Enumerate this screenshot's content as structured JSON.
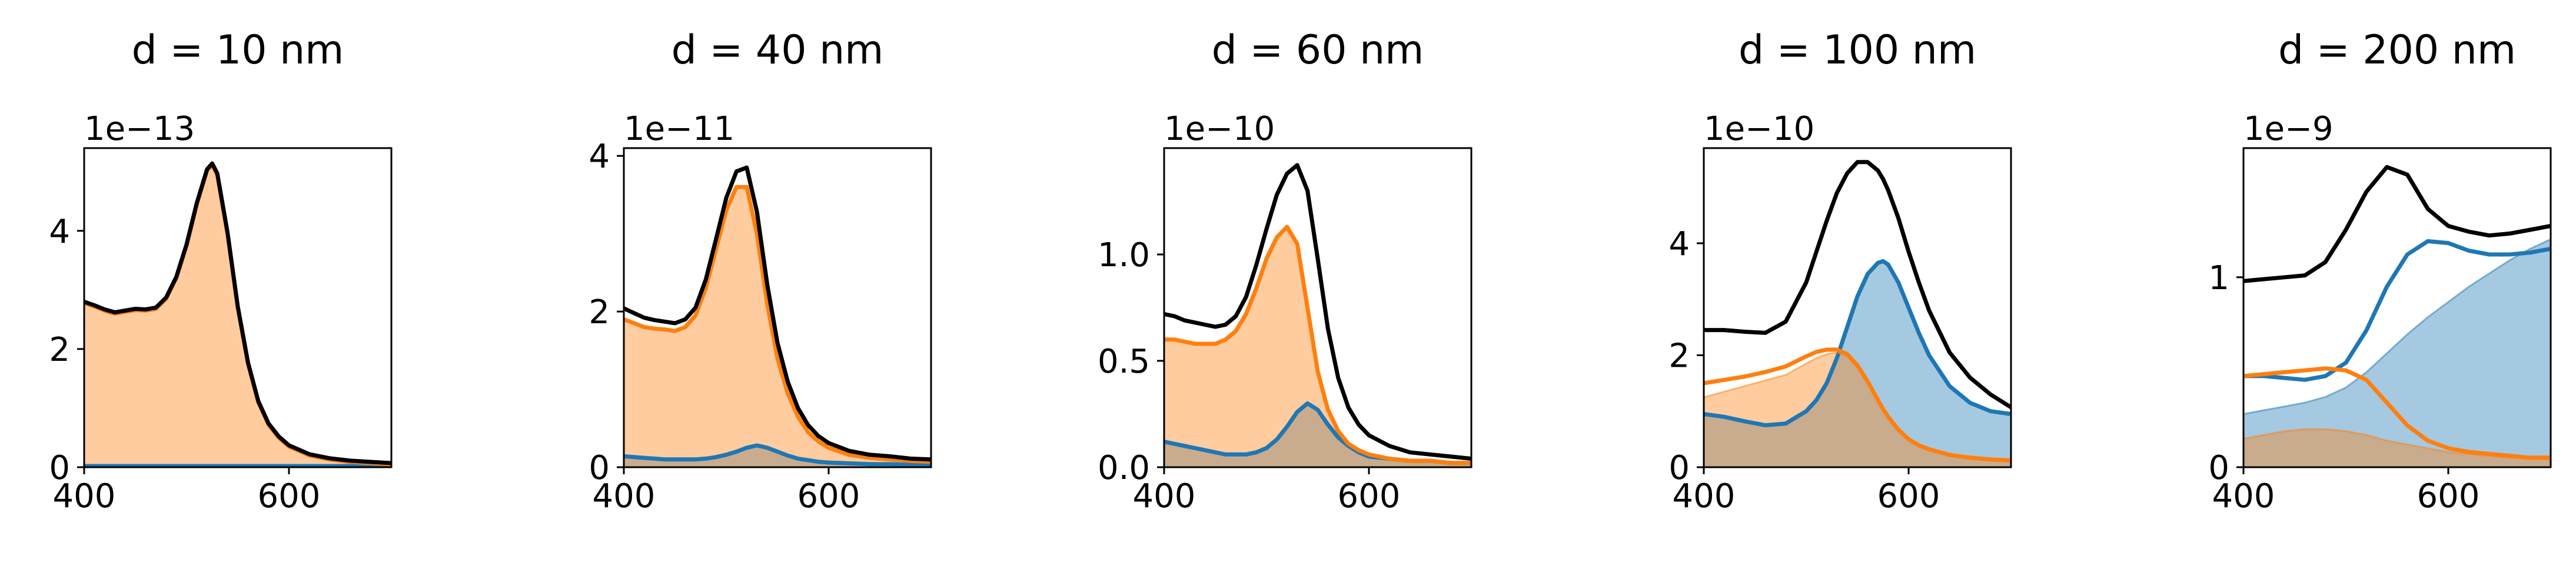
{
  "figure": {
    "colors": {
      "blue": "#1f77b4",
      "orange": "#ff7f0e",
      "black": "#000000",
      "blue_fill": "#a4c6e0",
      "orange_fill": "#ffc89b",
      "overlap_fill": "#c6a98f"
    }
  },
  "chart_data": [
    {
      "type": "line",
      "title": "d = 10 nm",
      "offset_text": "1e−13",
      "xlim": [
        400,
        700
      ],
      "ylim": [
        0,
        5.4
      ],
      "xticks": [
        400,
        600
      ],
      "xtick_labels": [
        "400",
        "600"
      ],
      "yticks": [
        0,
        2,
        4
      ],
      "ytick_labels": [
        "0",
        "2",
        "4"
      ],
      "x": [
        400,
        410,
        420,
        430,
        440,
        450,
        460,
        470,
        480,
        490,
        500,
        510,
        520,
        525,
        530,
        540,
        550,
        560,
        570,
        580,
        590,
        600,
        620,
        640,
        660,
        680,
        700
      ],
      "series": [
        {
          "color": "blue",
          "fill": false,
          "values": [
            0.02,
            0.02,
            0.02,
            0.02,
            0.02,
            0.02,
            0.02,
            0.02,
            0.02,
            0.02,
            0.02,
            0.02,
            0.02,
            0.02,
            0.02,
            0.02,
            0.02,
            0.02,
            0.02,
            0.02,
            0.02,
            0.02,
            0.02,
            0.02,
            0.02,
            0.02,
            0.02
          ]
        },
        {
          "color": "orange",
          "fill": true,
          "values": [
            2.78,
            2.72,
            2.65,
            2.6,
            2.63,
            2.66,
            2.65,
            2.68,
            2.85,
            3.2,
            3.75,
            4.45,
            5.02,
            5.12,
            4.95,
            3.95,
            2.7,
            1.75,
            1.1,
            0.72,
            0.5,
            0.35,
            0.2,
            0.13,
            0.09,
            0.07,
            0.05
          ]
        },
        {
          "color": "black",
          "fill": false,
          "values": [
            2.8,
            2.74,
            2.67,
            2.62,
            2.65,
            2.68,
            2.67,
            2.7,
            2.87,
            3.22,
            3.77,
            4.47,
            5.04,
            5.14,
            4.97,
            3.97,
            2.72,
            1.77,
            1.12,
            0.74,
            0.52,
            0.37,
            0.22,
            0.15,
            0.11,
            0.09,
            0.07
          ]
        }
      ]
    },
    {
      "type": "line",
      "title": "d = 40 nm",
      "offset_text": "1e−11",
      "xlim": [
        400,
        700
      ],
      "ylim": [
        0,
        4.1
      ],
      "xticks": [
        400,
        600
      ],
      "xtick_labels": [
        "400",
        "600"
      ],
      "yticks": [
        0,
        2,
        4
      ],
      "ytick_labels": [
        "0",
        "2",
        "4"
      ],
      "x": [
        400,
        410,
        420,
        430,
        440,
        450,
        460,
        470,
        480,
        490,
        500,
        510,
        520,
        530,
        540,
        550,
        560,
        570,
        580,
        590,
        600,
        620,
        640,
        660,
        680,
        700
      ],
      "series": [
        {
          "color": "blue",
          "fill": true,
          "values": [
            0.14,
            0.13,
            0.12,
            0.11,
            0.1,
            0.1,
            0.1,
            0.1,
            0.11,
            0.13,
            0.16,
            0.2,
            0.25,
            0.28,
            0.25,
            0.2,
            0.15,
            0.11,
            0.09,
            0.07,
            0.06,
            0.05,
            0.04,
            0.04,
            0.03,
            0.03
          ]
        },
        {
          "color": "orange",
          "fill": true,
          "values": [
            1.9,
            1.85,
            1.8,
            1.78,
            1.77,
            1.75,
            1.8,
            1.95,
            2.3,
            2.8,
            3.3,
            3.6,
            3.6,
            3.0,
            2.1,
            1.4,
            0.95,
            0.65,
            0.45,
            0.33,
            0.25,
            0.16,
            0.12,
            0.1,
            0.08,
            0.07
          ]
        },
        {
          "color": "black",
          "fill": false,
          "values": [
            2.04,
            1.98,
            1.92,
            1.89,
            1.87,
            1.85,
            1.9,
            2.05,
            2.41,
            2.93,
            3.46,
            3.8,
            3.85,
            3.28,
            2.35,
            1.6,
            1.1,
            0.76,
            0.54,
            0.4,
            0.31,
            0.21,
            0.16,
            0.14,
            0.11,
            0.1
          ]
        }
      ]
    },
    {
      "type": "line",
      "title": "d = 60 nm",
      "offset_text": "1e−10",
      "xlim": [
        400,
        700
      ],
      "ylim": [
        0,
        1.5
      ],
      "xticks": [
        400,
        600
      ],
      "xtick_labels": [
        "400",
        "600"
      ],
      "yticks": [
        0.0,
        0.5,
        1.0
      ],
      "ytick_labels": [
        "0.0",
        "0.5",
        "1.0"
      ],
      "x": [
        400,
        410,
        420,
        430,
        440,
        450,
        460,
        470,
        480,
        490,
        500,
        510,
        520,
        530,
        540,
        550,
        560,
        570,
        580,
        590,
        600,
        620,
        640,
        660,
        680,
        700
      ],
      "series": [
        {
          "color": "blue",
          "fill": true,
          "values": [
            0.12,
            0.11,
            0.1,
            0.09,
            0.08,
            0.07,
            0.06,
            0.06,
            0.06,
            0.07,
            0.09,
            0.13,
            0.19,
            0.26,
            0.3,
            0.27,
            0.2,
            0.14,
            0.1,
            0.07,
            0.05,
            0.04,
            0.03,
            0.03,
            0.02,
            0.02
          ]
        },
        {
          "color": "orange",
          "fill": true,
          "values": [
            0.6,
            0.6,
            0.59,
            0.58,
            0.58,
            0.58,
            0.6,
            0.64,
            0.72,
            0.84,
            0.98,
            1.08,
            1.13,
            1.05,
            0.75,
            0.45,
            0.27,
            0.17,
            0.11,
            0.08,
            0.06,
            0.04,
            0.03,
            0.03,
            0.02,
            0.02
          ]
        },
        {
          "color": "black",
          "fill": false,
          "values": [
            0.72,
            0.71,
            0.69,
            0.68,
            0.67,
            0.66,
            0.67,
            0.71,
            0.8,
            0.95,
            1.12,
            1.28,
            1.38,
            1.42,
            1.3,
            0.98,
            0.65,
            0.42,
            0.28,
            0.2,
            0.15,
            0.1,
            0.07,
            0.06,
            0.05,
            0.04
          ]
        }
      ]
    },
    {
      "type": "line",
      "title": "d = 100 nm",
      "offset_text": "1e−10",
      "xlim": [
        400,
        700
      ],
      "ylim": [
        0,
        5.7
      ],
      "xticks": [
        400,
        600
      ],
      "xtick_labels": [
        "400",
        "600"
      ],
      "yticks": [
        0,
        2,
        4
      ],
      "ytick_labels": [
        "0",
        "2",
        "4"
      ],
      "x": [
        400,
        420,
        440,
        460,
        480,
        500,
        510,
        520,
        530,
        540,
        550,
        560,
        570,
        575,
        580,
        590,
        600,
        610,
        620,
        640,
        660,
        680,
        700
      ],
      "series": [
        {
          "color": "blue",
          "fill": true,
          "values": [
            0.95,
            0.9,
            0.82,
            0.75,
            0.78,
            1.0,
            1.2,
            1.5,
            1.95,
            2.5,
            3.05,
            3.45,
            3.65,
            3.68,
            3.62,
            3.3,
            2.85,
            2.4,
            2.0,
            1.45,
            1.15,
            1.0,
            0.95
          ]
        },
        {
          "color": "orange",
          "fill": true,
          "values": [
            1.25,
            1.35,
            1.45,
            1.55,
            1.65,
            1.85,
            1.95,
            2.02,
            2.05,
            1.98,
            1.78,
            1.5,
            1.18,
            1.02,
            0.88,
            0.65,
            0.48,
            0.37,
            0.3,
            0.2,
            0.15,
            0.12,
            0.1
          ]
        },
        {
          "color": "orange",
          "fill": false,
          "values": [
            1.5,
            1.56,
            1.62,
            1.7,
            1.8,
            1.98,
            2.06,
            2.1,
            2.1,
            2.02,
            1.82,
            1.53,
            1.2,
            1.04,
            0.9,
            0.67,
            0.5,
            0.39,
            0.32,
            0.22,
            0.17,
            0.14,
            0.12
          ]
        },
        {
          "color": "black",
          "fill": false,
          "values": [
            2.45,
            2.45,
            2.42,
            2.4,
            2.6,
            3.3,
            3.85,
            4.4,
            4.9,
            5.25,
            5.45,
            5.45,
            5.3,
            5.15,
            4.95,
            4.45,
            3.85,
            3.3,
            2.8,
            2.05,
            1.6,
            1.3,
            1.07
          ]
        }
      ]
    },
    {
      "type": "line",
      "title": "d = 200 nm",
      "offset_text": "1e−9",
      "xlim": [
        400,
        700
      ],
      "ylim": [
        0,
        1.68
      ],
      "xticks": [
        400,
        600
      ],
      "xtick_labels": [
        "400",
        "600"
      ],
      "yticks": [
        0,
        1
      ],
      "ytick_labels": [
        "0",
        "1"
      ],
      "x": [
        400,
        420,
        440,
        460,
        480,
        500,
        520,
        540,
        560,
        580,
        600,
        620,
        640,
        660,
        680,
        700
      ],
      "series": [
        {
          "color": "blue",
          "fill": true,
          "values": [
            0.28,
            0.3,
            0.32,
            0.34,
            0.37,
            0.42,
            0.5,
            0.6,
            0.7,
            0.79,
            0.87,
            0.95,
            1.02,
            1.09,
            1.15,
            1.2
          ]
        },
        {
          "color": "orange",
          "fill": true,
          "values": [
            0.15,
            0.17,
            0.19,
            0.2,
            0.2,
            0.19,
            0.17,
            0.14,
            0.12,
            0.1,
            0.08,
            0.07,
            0.06,
            0.05,
            0.05,
            0.04
          ]
        },
        {
          "color": "blue",
          "fill": false,
          "values": [
            0.48,
            0.48,
            0.47,
            0.46,
            0.48,
            0.55,
            0.72,
            0.95,
            1.12,
            1.19,
            1.18,
            1.14,
            1.12,
            1.12,
            1.13,
            1.15
          ]
        },
        {
          "color": "orange",
          "fill": false,
          "values": [
            0.48,
            0.49,
            0.5,
            0.51,
            0.52,
            0.51,
            0.46,
            0.34,
            0.22,
            0.14,
            0.1,
            0.08,
            0.07,
            0.06,
            0.05,
            0.05
          ]
        },
        {
          "color": "black",
          "fill": false,
          "values": [
            0.98,
            0.99,
            1.0,
            1.01,
            1.08,
            1.25,
            1.45,
            1.58,
            1.54,
            1.36,
            1.27,
            1.24,
            1.22,
            1.23,
            1.25,
            1.27
          ]
        }
      ]
    }
  ]
}
